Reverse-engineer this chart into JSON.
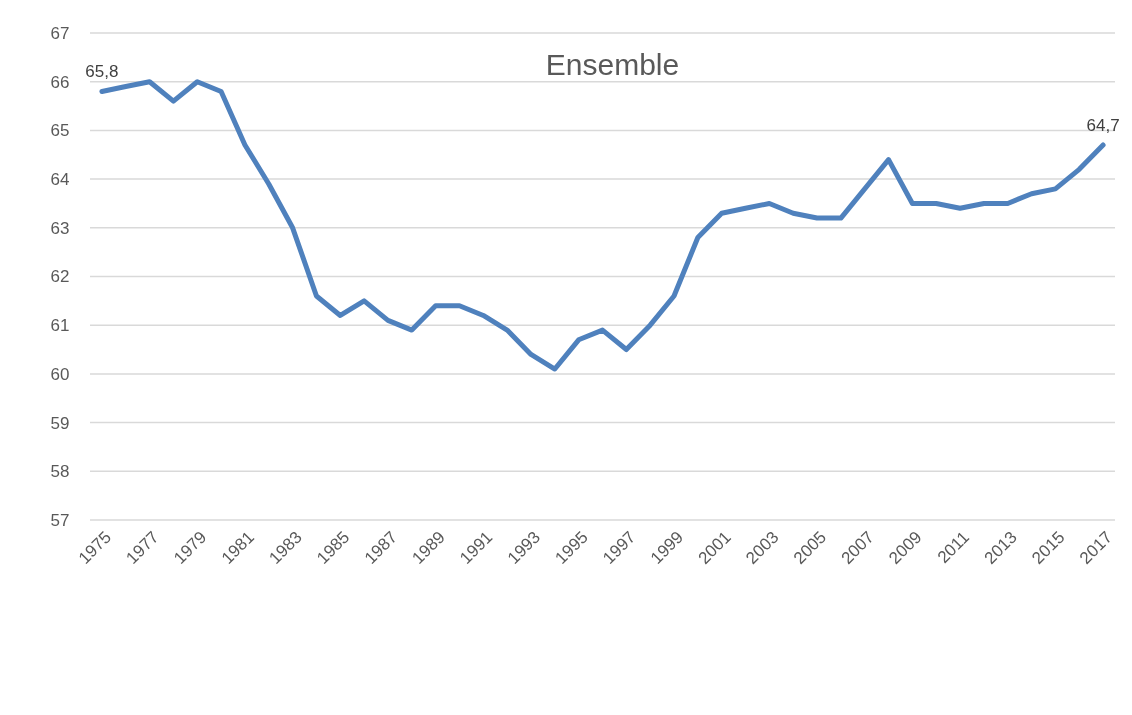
{
  "chart_data": {
    "type": "line",
    "title": "Ensemble",
    "categories": [
      "1975",
      null,
      "1977",
      null,
      "1979",
      null,
      "1981",
      null,
      "1983",
      null,
      "1985",
      null,
      "1987",
      null,
      "1989",
      null,
      "1991",
      null,
      "1993",
      null,
      "1995",
      null,
      "1997",
      null,
      "1999",
      null,
      "2001",
      null,
      "2003",
      null,
      "2005",
      null,
      "2007",
      null,
      "2009",
      null,
      "2011",
      null,
      "2013",
      null,
      "2015",
      null,
      "2017"
    ],
    "series": [
      {
        "color": "#4f81bd",
        "values": [
          65.8,
          65.9,
          66.0,
          65.6,
          66.0,
          65.8,
          64.7,
          63.9,
          63.0,
          61.6,
          61.2,
          61.5,
          61.1,
          60.9,
          61.4,
          61.4,
          61.2,
          60.9,
          60.4,
          60.1,
          60.7,
          60.9,
          60.5,
          61.0,
          61.6,
          62.8,
          63.3,
          63.4,
          63.5,
          63.3,
          63.2,
          63.2,
          63.8,
          64.4,
          63.5,
          63.5,
          63.4,
          63.5,
          63.5,
          63.7,
          63.8,
          64.2,
          64.7
        ],
        "value_labels": [
          "65,8",
          null,
          null,
          null,
          null,
          null,
          null,
          null,
          null,
          null,
          null,
          null,
          null,
          null,
          null,
          null,
          null,
          null,
          null,
          null,
          null,
          null,
          null,
          null,
          null,
          null,
          null,
          null,
          null,
          null,
          null,
          null,
          null,
          null,
          null,
          null,
          null,
          null,
          null,
          null,
          null,
          null,
          "64,7"
        ]
      }
    ],
    "ylim": [
      57,
      67
    ],
    "yticks": [
      57,
      58,
      59,
      60,
      61,
      62,
      63,
      64,
      65,
      66,
      67
    ],
    "grid": "y",
    "marker": "none",
    "line_style": "solid"
  }
}
